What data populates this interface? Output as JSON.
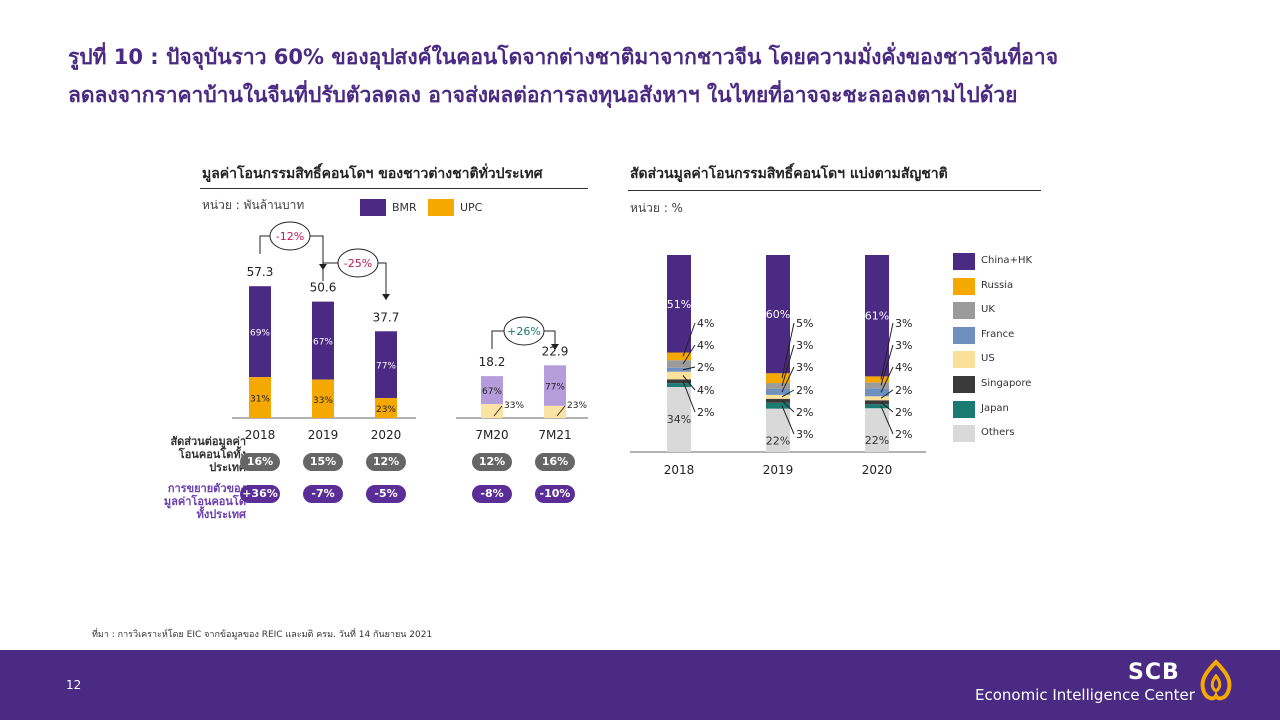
{
  "title": {
    "line1": "รูปที่ 10 : ปัจจุบันราว 60% ของอุปสงค์ในคอนโดจากต่างชาติมาจากชาวจีน โดยความมั่งคั่งของชาวจีนที่อาจ",
    "line2": "ลดลงจากราคาบ้านในจีนที่ปรับตัวลดลง อาจส่งผลต่อการลงทุนอสังหาฯ ในไทยที่อาจจะชะลอลงตามไปด้วย"
  },
  "left": {
    "heading": "มูลค่าโอนกรรมสิทธิ์คอนโดฯ ของชาวต่างชาติทั่วประเทศ",
    "unit": "หน่วย : พันล้านบาท",
    "legend": [
      {
        "label": "BMR",
        "color": "#4a2a83"
      },
      {
        "label": "UPC",
        "color": "#f5a800"
      }
    ],
    "row1_label": [
      "สัดส่วนต่อมูลค่า",
      "โอนคอนโดทั้ง",
      "ประเทศ"
    ],
    "row2_label": [
      "การขยายตัวของ",
      "มูลค่าโอนคอนโด",
      "ทั้งประเทศ"
    ]
  },
  "right": {
    "heading": "สัดส่วนมูลค่าโอนกรรมสิทธิ์คอนโดฯ แบ่งตามสัญชาติ",
    "unit": "หน่วย : %"
  },
  "chart_data": [
    {
      "type": "bar",
      "title": "มูลค่าโอนกรรมสิทธิ์คอนโดฯ ของชาวต่างชาติทั่วประเทศ",
      "ylabel": "พันล้านบาท",
      "categories": [
        "2018",
        "2019",
        "2020",
        "7M20",
        "7M21"
      ],
      "totals": [
        57.3,
        50.6,
        37.7,
        18.2,
        22.9
      ],
      "series": [
        {
          "name": "BMR",
          "share_labels": [
            "69%",
            "67%",
            "77%",
            "67%",
            "77%"
          ],
          "share_values": [
            69,
            67,
            77,
            67,
            77
          ]
        },
        {
          "name": "UPC",
          "share_labels": [
            "31%",
            "33%",
            "23%",
            "33%",
            "23%"
          ],
          "share_values": [
            31,
            33,
            23,
            33,
            23
          ]
        }
      ],
      "changes": [
        {
          "from": "2018",
          "to": "2019",
          "label": "-12%"
        },
        {
          "from": "2019",
          "to": "2020",
          "label": "-25%"
        },
        {
          "from": "7M20",
          "to": "7M21",
          "label": "+26%"
        }
      ],
      "share_of_total": [
        "16%",
        "15%",
        "12%",
        "12%",
        "16%"
      ],
      "growth": [
        "+36%",
        "-7%",
        "-5%",
        "-8%",
        "-10%"
      ]
    },
    {
      "type": "bar",
      "stacked": true,
      "title": "สัดส่วนมูลค่าโอนกรรมสิทธิ์คอนโดฯ แบ่งตามสัญชาติ",
      "ylabel": "%",
      "categories": [
        "2018",
        "2019",
        "2020"
      ],
      "series": [
        {
          "name": "China+HK",
          "color": "#4a2a83",
          "values": [
            51,
            60,
            61
          ],
          "labels": [
            "51%",
            "60%",
            "61%"
          ]
        },
        {
          "name": "Russia",
          "color": "#f5a800",
          "values": [
            4,
            5,
            3
          ],
          "labels": [
            "4%",
            "5%",
            "3%"
          ]
        },
        {
          "name": "UK",
          "color": "#9b9b9b",
          "values": [
            4,
            3,
            3
          ],
          "labels": [
            "4%",
            "3%",
            "3%"
          ]
        },
        {
          "name": "France",
          "color": "#6f8fbf",
          "values": [
            2,
            3,
            4
          ],
          "labels": [
            "2%",
            "3%",
            "4%"
          ]
        },
        {
          "name": "US",
          "color": "#fbe09a",
          "values": [
            4,
            2,
            2
          ],
          "labels": [
            "4%",
            "2%",
            "2%"
          ]
        },
        {
          "name": "Singapore",
          "color": "#3a3a3a",
          "values": [
            2,
            2,
            2
          ],
          "labels": [
            "2%",
            "2%",
            "2%"
          ]
        },
        {
          "name": "Japan",
          "color": "#1b7a72",
          "values": [
            2,
            3,
            2
          ],
          "labels": [
            "",
            "3%",
            "2%"
          ]
        },
        {
          "name": "Others",
          "color": "#d9d9d9",
          "values": [
            34,
            22,
            22
          ],
          "labels": [
            "34%",
            "22%",
            "22%"
          ]
        }
      ]
    }
  ],
  "source": "ที่มา : การวิเคราะห์โดย EIC จากข้อมูลของ REIC และมติ ครม. วันที่ 14 กันยายน 2021",
  "footer": {
    "page": "12",
    "brand": "SCB",
    "center": "Economic Intelligence Center"
  }
}
